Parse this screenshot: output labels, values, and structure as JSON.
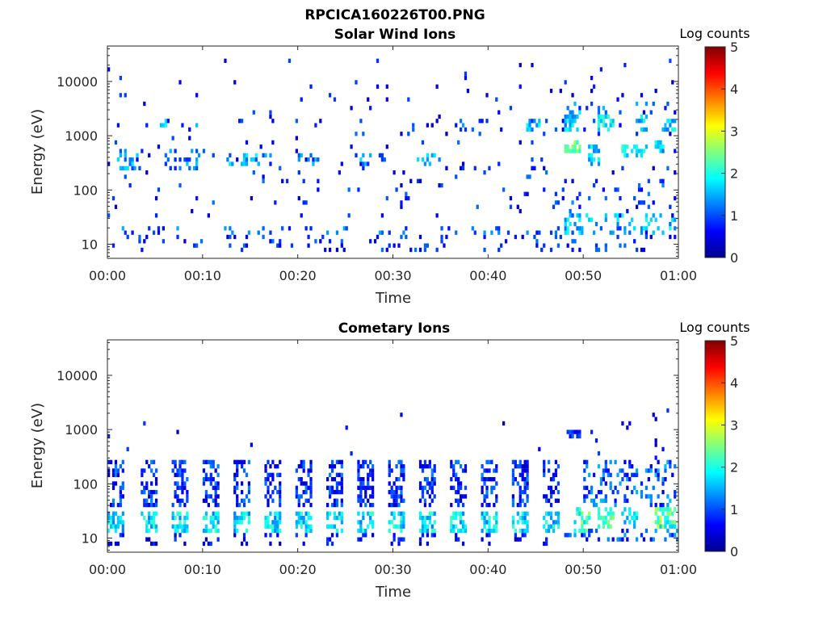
{
  "figure": {
    "title": "RPCICA160226T00.PNG"
  },
  "chart_data": [
    {
      "type": "heatmap",
      "title": "Solar Wind Ions",
      "xlabel": "Time",
      "ylabel": "Energy (eV)",
      "x_ticks": [
        "00:00",
        "00:10",
        "00:20",
        "00:30",
        "00:40",
        "00:50",
        "01:00"
      ],
      "x_range_minutes": [
        0,
        60
      ],
      "y_scale": "log",
      "y_range_eV": [
        5.5,
        45000
      ],
      "y_ticks": [
        10,
        100,
        1000,
        10000
      ],
      "y_tick_labels": [
        "10",
        "100",
        "1000",
        "10000"
      ],
      "colorbar": {
        "label": "Log counts",
        "range": [
          0,
          5
        ],
        "ticks": [
          "0",
          "1",
          "2",
          "3",
          "4",
          "5"
        ],
        "colormap": "jet"
      },
      "blobs": [
        {
          "t": [
            1.0,
            3.5
          ],
          "e": [
            250,
            600
          ],
          "lc": [
            0.8,
            1.8
          ],
          "d": 0.35
        },
        {
          "t": [
            6.0,
            9.5
          ],
          "e": [
            250,
            550
          ],
          "lc": [
            0.8,
            1.8
          ],
          "d": 0.25
        },
        {
          "t": [
            5.5,
            6.3
          ],
          "e": [
            1400,
            2200
          ],
          "lc": [
            1.5,
            2.3
          ],
          "d": 0.5
        },
        {
          "t": [
            8.7,
            9.3
          ],
          "e": [
            1400,
            2000
          ],
          "lc": [
            1.0,
            1.8
          ],
          "d": 0.5
        },
        {
          "t": [
            12.5,
            15.5
          ],
          "e": [
            300,
            500
          ],
          "lc": [
            1.0,
            2.0
          ],
          "d": 0.3
        },
        {
          "t": [
            15.5,
            17.0
          ],
          "e": [
            300,
            500
          ],
          "lc": [
            0.8,
            1.8
          ],
          "d": 0.3
        },
        {
          "t": [
            20.0,
            22.0
          ],
          "e": [
            280,
            450
          ],
          "lc": [
            1.0,
            1.8
          ],
          "d": 0.3
        },
        {
          "t": [
            26.0,
            29.0
          ],
          "e": [
            280,
            450
          ],
          "lc": [
            0.8,
            1.8
          ],
          "d": 0.25
        },
        {
          "t": [
            32.0,
            35.0
          ],
          "e": [
            300,
            500
          ],
          "lc": [
            0.8,
            1.8
          ],
          "d": 0.25
        },
        {
          "t": [
            37.0,
            41.0
          ],
          "e": [
            1200,
            2000
          ],
          "lc": [
            0.8,
            1.6
          ],
          "d": 0.25
        },
        {
          "t": [
            44.0,
            45.5
          ],
          "e": [
            1200,
            2000
          ],
          "lc": [
            1.2,
            2.0
          ],
          "d": 0.35
        },
        {
          "t": [
            48.0,
            49.5
          ],
          "e": [
            500,
            900
          ],
          "lc": [
            2.0,
            2.7
          ],
          "d": 0.6
        },
        {
          "t": [
            48.0,
            49.5
          ],
          "e": [
            1200,
            3000
          ],
          "lc": [
            1.2,
            2.0
          ],
          "d": 0.45
        },
        {
          "t": [
            51.5,
            53.0
          ],
          "e": [
            1200,
            2500
          ],
          "lc": [
            1.5,
            2.2
          ],
          "d": 0.5
        },
        {
          "t": [
            50.5,
            51.5
          ],
          "e": [
            300,
            700
          ],
          "lc": [
            1.2,
            2.0
          ],
          "d": 0.5
        },
        {
          "t": [
            54.0,
            56.5
          ],
          "e": [
            400,
            700
          ],
          "lc": [
            1.5,
            2.2
          ],
          "d": 0.5
        },
        {
          "t": [
            55.5,
            56.5
          ],
          "e": [
            1300,
            2300
          ],
          "lc": [
            1.2,
            2.0
          ],
          "d": 0.5
        },
        {
          "t": [
            57.5,
            58.5
          ],
          "e": [
            450,
            800
          ],
          "lc": [
            1.5,
            2.3
          ],
          "d": 0.5
        },
        {
          "t": [
            58.0,
            59.5
          ],
          "e": [
            1300,
            2200
          ],
          "lc": [
            1.2,
            2.0
          ],
          "d": 0.5
        },
        {
          "t": [
            48.0,
            59.5
          ],
          "e": [
            2500,
            4500
          ],
          "lc": [
            0.8,
            1.6
          ],
          "d": 0.1
        },
        {
          "t": [
            0.5,
            59.5
          ],
          "e": [
            14,
            22
          ],
          "lc": [
            0.6,
            1.5
          ],
          "d": 0.12
        },
        {
          "t": [
            0.5,
            59.5
          ],
          "e": [
            7,
            14
          ],
          "lc": [
            0.4,
            1.2
          ],
          "d": 0.1
        },
        {
          "t": [
            48.0,
            59.5
          ],
          "e": [
            14,
            40
          ],
          "lc": [
            1.0,
            2.0
          ],
          "d": 0.2
        },
        {
          "t": [
            47.0,
            59.5
          ],
          "e": [
            50,
            150
          ],
          "lc": [
            0.6,
            1.4
          ],
          "d": 0.08
        },
        {
          "t": [
            0.0,
            60.0
          ],
          "e": [
            30,
            3000
          ],
          "lc": [
            0.3,
            1.2
          ],
          "d": 0.03
        },
        {
          "t": [
            0.0,
            60.0
          ],
          "e": [
            3000,
            25000
          ],
          "lc": [
            0.3,
            1.0
          ],
          "d": 0.015
        }
      ]
    },
    {
      "type": "heatmap",
      "title": "Cometary Ions",
      "xlabel": "Time",
      "ylabel": "Energy (eV)",
      "x_ticks": [
        "00:00",
        "00:10",
        "00:20",
        "00:30",
        "00:40",
        "00:50",
        "01:00"
      ],
      "x_range_minutes": [
        0,
        60
      ],
      "y_scale": "log",
      "y_range_eV": [
        5.5,
        45000
      ],
      "y_ticks": [
        10,
        100,
        1000,
        10000
      ],
      "y_tick_labels": [
        "10",
        "100",
        "1000",
        "10000"
      ],
      "colorbar": {
        "label": "Log counts",
        "range": [
          0,
          5
        ],
        "ticks": [
          "0",
          "1",
          "2",
          "3",
          "4",
          "5"
        ],
        "colormap": "jet"
      },
      "periodic_bursts": {
        "centers_minutes": [
          0.8,
          4.2,
          7.5,
          10.8,
          14.0,
          17.3,
          20.5,
          23.8,
          27.0,
          30.2,
          33.5,
          36.8,
          40.0,
          43.3,
          46.5
        ],
        "core_e": [
          12,
          32
        ],
        "core_lc": [
          1.2,
          2.2
        ],
        "tail_e": [
          35,
          300
        ],
        "tail_lc": [
          0.3,
          1.3
        ]
      },
      "blobs": [
        {
          "t": [
            48.5,
            49.5
          ],
          "e": [
            700,
            1000
          ],
          "lc": [
            0.5,
            1.2
          ],
          "d": 0.8
        },
        {
          "t": [
            49.0,
            50.5
          ],
          "e": [
            12,
            40
          ],
          "lc": [
            1.5,
            2.8
          ],
          "d": 0.55
        },
        {
          "t": [
            50.0,
            59.5
          ],
          "e": [
            40,
            300
          ],
          "lc": [
            0.4,
            1.6
          ],
          "d": 0.3
        },
        {
          "t": [
            51.5,
            53.0
          ],
          "e": [
            15,
            40
          ],
          "lc": [
            1.8,
            2.6
          ],
          "d": 0.6
        },
        {
          "t": [
            54.0,
            55.5
          ],
          "e": [
            15,
            40
          ],
          "lc": [
            1.3,
            2.3
          ],
          "d": 0.5
        },
        {
          "t": [
            57.5,
            59.5
          ],
          "e": [
            15,
            40
          ],
          "lc": [
            1.6,
            2.9
          ],
          "d": 0.6
        },
        {
          "t": [
            48.0,
            60.0
          ],
          "e": [
            8,
            15
          ],
          "lc": [
            0.5,
            1.5
          ],
          "d": 0.25
        },
        {
          "t": [
            48.0,
            60.0
          ],
          "e": [
            300,
            3500
          ],
          "lc": [
            0.3,
            1.0
          ],
          "d": 0.02
        },
        {
          "t": [
            0.0,
            48.0
          ],
          "e": [
            300,
            2000
          ],
          "lc": [
            0.3,
            1.0
          ],
          "d": 0.008
        }
      ]
    }
  ]
}
